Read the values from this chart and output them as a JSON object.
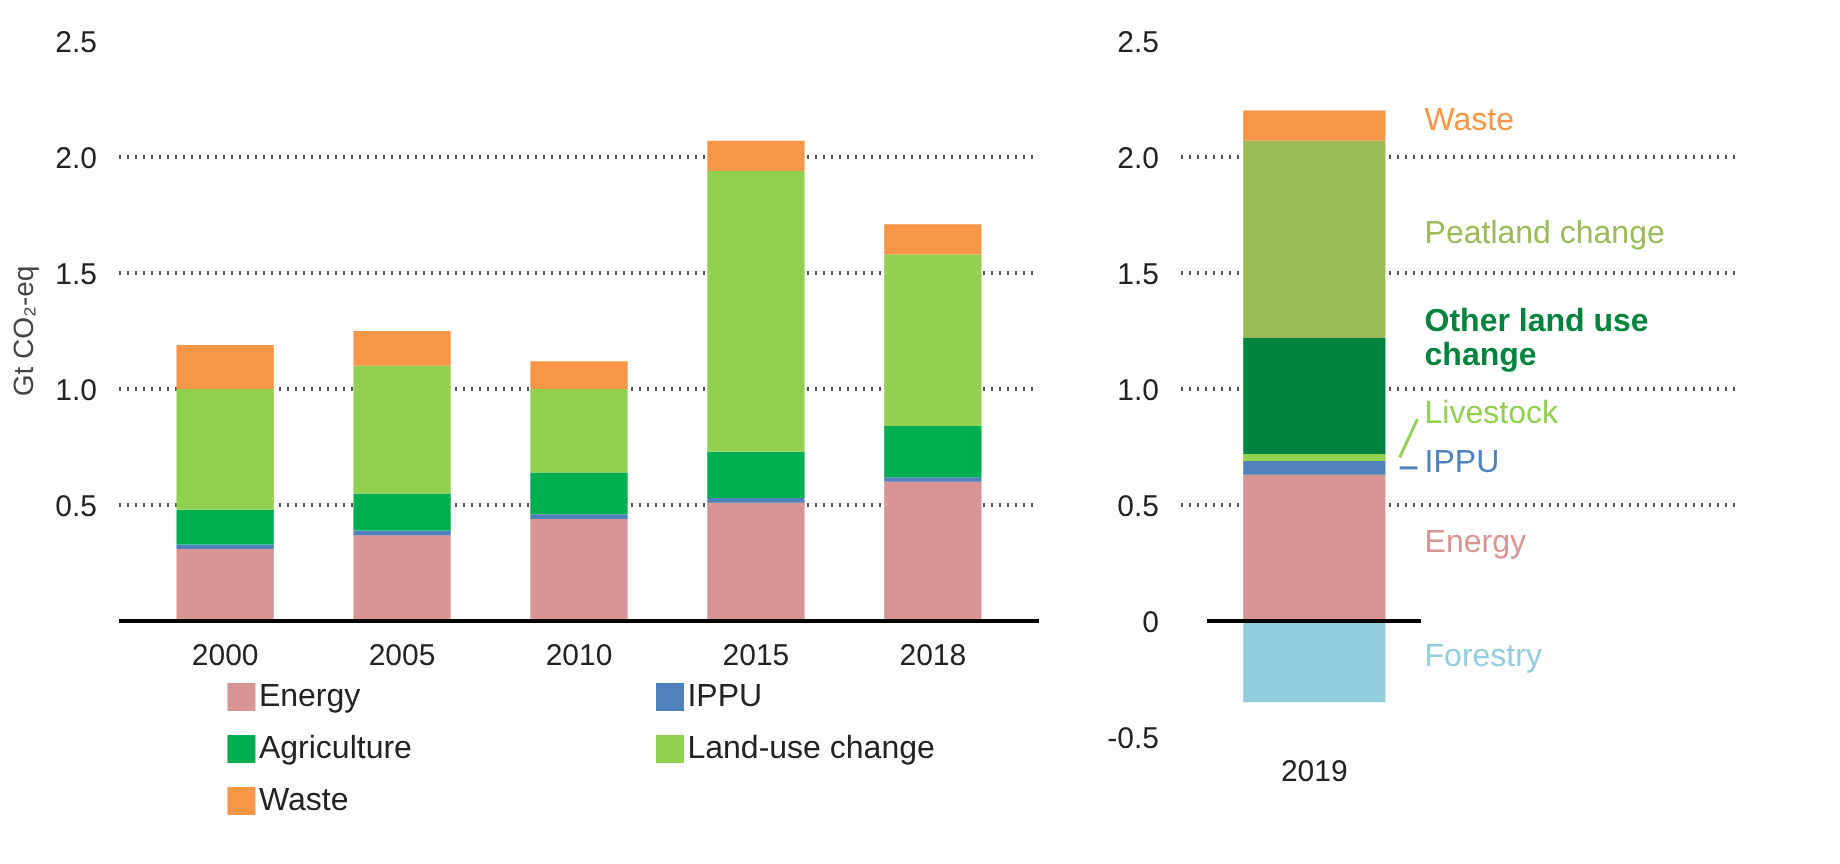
{
  "chart_data": [
    {
      "type": "bar",
      "stacked": true,
      "ylabel": "Gt CO₂-eq",
      "categories": [
        "2000",
        "2005",
        "2010",
        "2015",
        "2018"
      ],
      "ylim": [
        0,
        2.5
      ],
      "yticks": [
        0.5,
        {
          "value": 1,
          "label": "1.0"
        },
        1.5,
        {
          "value": 2,
          "label": "2.0"
        },
        2.5
      ],
      "grid": "y",
      "legend": "bottom",
      "series": [
        {
          "name": "Energy",
          "color": "#d99594",
          "values": [
            0.31,
            0.37,
            0.44,
            0.51,
            0.6
          ]
        },
        {
          "name": "IPPU",
          "color": "#4f81bd",
          "values": [
            0.02,
            0.02,
            0.02,
            0.02,
            0.02
          ]
        },
        {
          "name": "Agriculture",
          "color": "#00b050",
          "values": [
            0.15,
            0.16,
            0.18,
            0.2,
            0.22
          ]
        },
        {
          "name": "Land-use change",
          "color": "#92d050",
          "values": [
            0.52,
            0.55,
            0.36,
            1.21,
            0.74
          ]
        },
        {
          "name": "Waste",
          "color": "#f79646",
          "values": [
            0.19,
            0.15,
            0.12,
            0.13,
            0.13
          ]
        }
      ]
    },
    {
      "type": "bar",
      "stacked": true,
      "categories": [
        "2019"
      ],
      "ylim": [
        -0.5,
        2.5
      ],
      "yticks": [
        {
          "value": -0.5,
          "label": "-0.5"
        },
        0,
        0.5,
        {
          "value": 1,
          "label": "1.0"
        },
        1.5,
        {
          "value": 2,
          "label": "2.0"
        },
        2.5
      ],
      "grid": "y",
      "series": [
        {
          "name": "Forestry",
          "color": "#92cddc",
          "values": [
            -0.35
          ]
        },
        {
          "name": "Energy",
          "color": "#d99594",
          "values": [
            0.63
          ]
        },
        {
          "name": "IPPU",
          "color": "#4f81bd",
          "values": [
            0.06
          ]
        },
        {
          "name": "Livestock",
          "color": "#92d050",
          "values": [
            0.03
          ]
        },
        {
          "name": "Other land use change",
          "color": "#00843d",
          "values": [
            0.5
          ]
        },
        {
          "name": "Peatland change",
          "color": "#9bbb59",
          "values": [
            0.85
          ]
        },
        {
          "name": "Waste",
          "color": "#f79646",
          "values": [
            0.13
          ]
        }
      ]
    }
  ]
}
